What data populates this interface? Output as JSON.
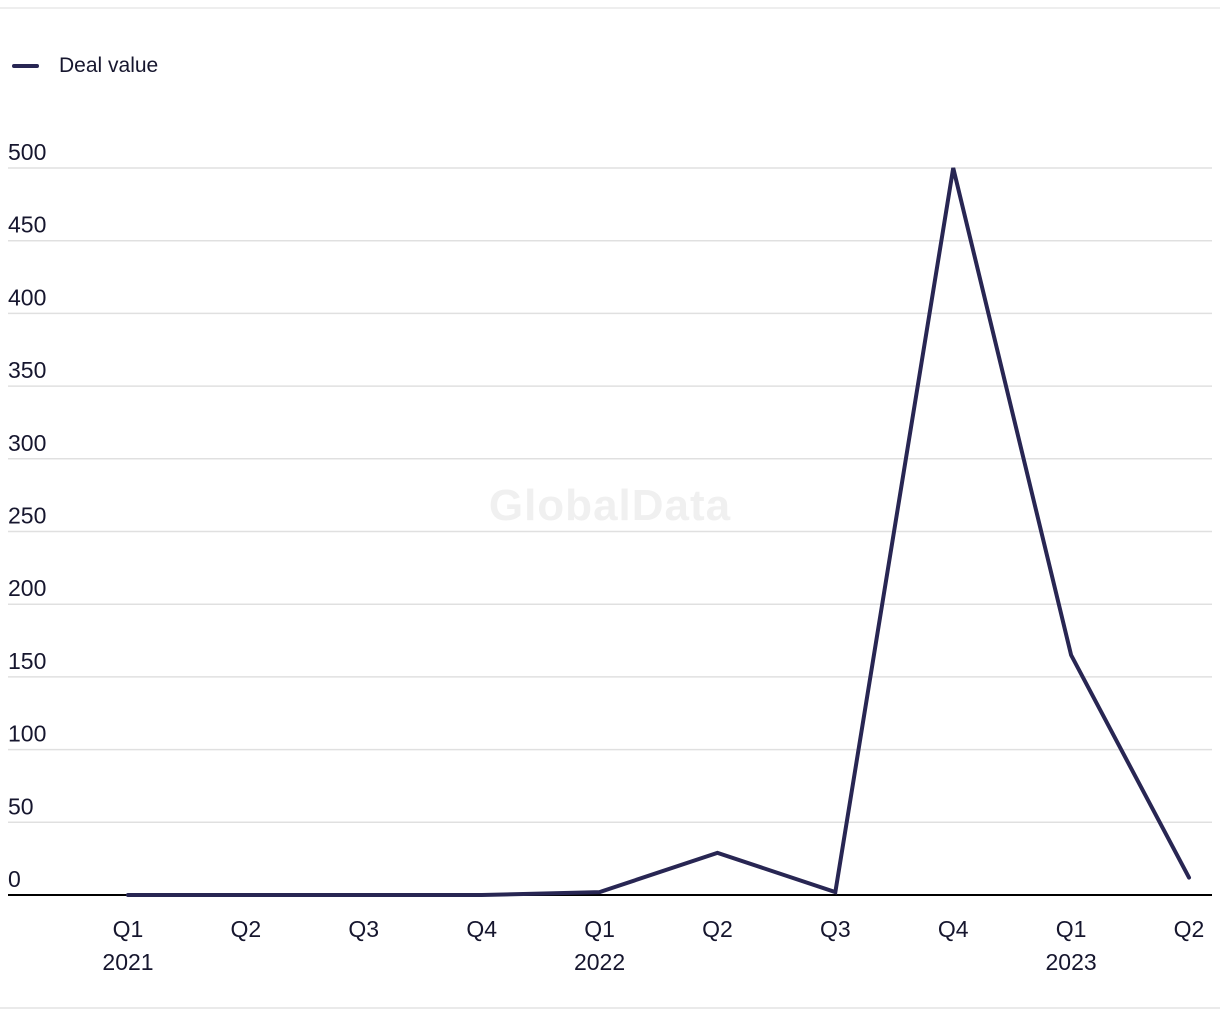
{
  "legend": {
    "label": "Deal value"
  },
  "watermark": "GlobalData",
  "chart_data": {
    "type": "line",
    "title": "",
    "xlabel": "",
    "ylabel": "",
    "categories": [
      "Q1",
      "Q2",
      "Q3",
      "Q4",
      "Q1",
      "Q2",
      "Q3",
      "Q4",
      "Q1",
      "Q2"
    ],
    "year_labels": [
      {
        "index": 0,
        "label": "2021"
      },
      {
        "index": 4,
        "label": "2022"
      },
      {
        "index": 8,
        "label": "2023"
      }
    ],
    "series": [
      {
        "name": "Deal value",
        "values": [
          0,
          0,
          0,
          0,
          2,
          29,
          2,
          500,
          165,
          12
        ]
      }
    ],
    "y_ticks": [
      0,
      50,
      100,
      150,
      200,
      250,
      300,
      350,
      400,
      450,
      500
    ],
    "ylim": [
      0,
      500
    ],
    "grid": true,
    "legend_position": "top-left",
    "line_color": "#282653",
    "grid_color": "#e0e0e0",
    "axis_color": "#000000",
    "text_color": "#16162e",
    "watermark_color": "#f0f0f0"
  }
}
